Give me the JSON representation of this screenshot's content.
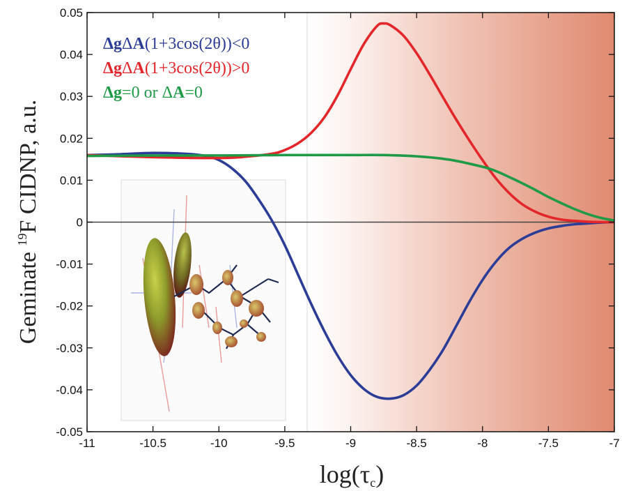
{
  "chart_data": {
    "type": "line",
    "title": "",
    "xlabel": "log(τc)",
    "xlabel_main": "log(τ",
    "xlabel_sub": "c",
    "xlabel_close": ")",
    "ylabel": "Geminate 19F CIDNP, a.u.",
    "ylabel_prefix": "Geminate ",
    "ylabel_sup": "19",
    "ylabel_suffix": "F CIDNP, a.u.",
    "xlim": [
      -11,
      -7
    ],
    "ylim": [
      -0.05,
      0.05
    ],
    "x_ticks": [
      -11,
      -10.5,
      -10,
      -9.5,
      -9,
      -8.5,
      -8,
      -7.5,
      -7
    ],
    "x_tick_labels": [
      "-11",
      "-10.5",
      "-10",
      "-9.5",
      "-9",
      "-8.5",
      "-8",
      "-7.5",
      "-7"
    ],
    "y_ticks": [
      -0.05,
      -0.04,
      -0.03,
      -0.02,
      -0.01,
      0,
      0.01,
      0.02,
      0.03,
      0.04,
      0.05
    ],
    "y_tick_labels": [
      "-0.05",
      "-0.04",
      "-0.03",
      "-0.02",
      "-0.01",
      "0",
      "0.01",
      "0.02",
      "0.03",
      "0.04",
      "0.05"
    ],
    "grid": false,
    "legend_position": "top-left",
    "legend": [
      {
        "bold1": "Δg",
        "mid1": "Δ",
        "bold2": "A",
        "rest": "(1+3cos(2θ))<0",
        "color": "#2b3d96"
      },
      {
        "bold1": "Δg",
        "mid1": "Δ",
        "bold2": "A",
        "rest": "(1+3cos(2θ))>0",
        "color": "#e3262a"
      },
      {
        "bold1": "Δg",
        "mid1": "=0 or Δ",
        "bold2": "A",
        "rest": "=0",
        "color": "#1f9a47"
      }
    ],
    "series": [
      {
        "color": "#2b3d96",
        "x": [
          -11,
          -10.75,
          -10.5,
          -10.25,
          -10.1,
          -10.0,
          -9.9,
          -9.8,
          -9.7,
          -9.6,
          -9.5,
          -9.4,
          -9.3,
          -9.2,
          -9.1,
          -9.0,
          -8.9,
          -8.8,
          -8.7,
          -8.6,
          -8.5,
          -8.4,
          -8.3,
          -8.2,
          -8.1,
          -8.0,
          -7.9,
          -7.8,
          -7.7,
          -7.6,
          -7.5,
          -7.4,
          -7.3,
          -7.2,
          -7.1,
          -7.0
        ],
        "y": [
          0.016,
          0.0162,
          0.0165,
          0.0163,
          0.0158,
          0.0148,
          0.0128,
          0.0098,
          0.0055,
          0.0005,
          -0.0055,
          -0.0125,
          -0.0195,
          -0.026,
          -0.0318,
          -0.0365,
          -0.0398,
          -0.0417,
          -0.0421,
          -0.0413,
          -0.039,
          -0.0352,
          -0.0305,
          -0.0248,
          -0.019,
          -0.0138,
          -0.0095,
          -0.0062,
          -0.004,
          -0.0025,
          -0.0015,
          -0.0009,
          -0.0005,
          -0.0003,
          -0.0001,
          0.0
        ]
      },
      {
        "color": "#e3262a",
        "x": [
          -11,
          -10.5,
          -10.0,
          -9.8,
          -9.6,
          -9.5,
          -9.4,
          -9.3,
          -9.2,
          -9.1,
          -9.0,
          -8.9,
          -8.8,
          -8.75,
          -8.7,
          -8.6,
          -8.5,
          -8.4,
          -8.3,
          -8.2,
          -8.1,
          -8.0,
          -7.9,
          -7.8,
          -7.7,
          -7.6,
          -7.5,
          -7.4,
          -7.3,
          -7.2,
          -7.1,
          -7.0
        ],
        "y": [
          0.016,
          0.0155,
          0.0153,
          0.0156,
          0.0163,
          0.0172,
          0.0188,
          0.0213,
          0.025,
          0.0302,
          0.0365,
          0.0425,
          0.0468,
          0.0474,
          0.047,
          0.0445,
          0.0403,
          0.0352,
          0.0298,
          0.0245,
          0.0195,
          0.0148,
          0.0105,
          0.007,
          0.0043,
          0.0025,
          0.0013,
          0.0006,
          0.0003,
          0.0001,
          0.0,
          0.0
        ]
      },
      {
        "color": "#1f9a47",
        "x": [
          -11,
          -10.5,
          -10.0,
          -9.5,
          -9.0,
          -8.75,
          -8.5,
          -8.25,
          -8.0,
          -7.9,
          -7.8,
          -7.7,
          -7.6,
          -7.5,
          -7.4,
          -7.3,
          -7.2,
          -7.1,
          -7.0
        ],
        "y": [
          0.0158,
          0.0159,
          0.0159,
          0.016,
          0.016,
          0.016,
          0.0157,
          0.0149,
          0.0132,
          0.0122,
          0.0108,
          0.0093,
          0.0077,
          0.006,
          0.0045,
          0.0031,
          0.0019,
          0.001,
          0.0004
        ]
      }
    ]
  }
}
